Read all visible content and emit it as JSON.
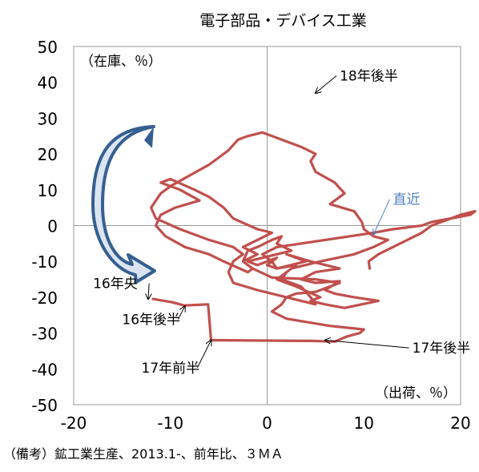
{
  "chart_data": {
    "type": "line",
    "title": "電子部品・デバイス工業",
    "ylabel": "（在庫、％）",
    "xlabel": "（出荷、％）",
    "xlim": [
      -20,
      20
    ],
    "ylim": [
      -50,
      50
    ],
    "xticks": [
      -20,
      -10,
      0,
      10,
      20
    ],
    "yticks": [
      50,
      40,
      30,
      20,
      10,
      0,
      -10,
      -20,
      -30,
      -40,
      -50
    ],
    "grid": false,
    "colors": {
      "line": "#c0504d",
      "annotation_latest": "#4f81bd",
      "arrow_fill": "#dbe5f1",
      "arrow_stroke": "#365f91"
    },
    "series": [
      {
        "x": [
          -11.8,
          -9.8,
          -8.6,
          -6.1,
          -5.8,
          4.5,
          7.0,
          8.2,
          9.6,
          10.0,
          6.5,
          2.0,
          0.5,
          1.5,
          2.0,
          3.0,
          5.0,
          7.5,
          5.0,
          0.5,
          -1.5,
          -2.5,
          -1.0,
          -2.5,
          -1.0,
          0.5,
          -1.0,
          -3.5,
          -4.5,
          -6.0,
          -7.5,
          -10.0,
          -11.0,
          -9.0,
          -7.0,
          -9.5,
          -11.0,
          -11.5,
          -10.5,
          -8.5,
          -6.0,
          -4.5,
          -2.0,
          -1.5,
          -2.5,
          -2.0,
          -1.0,
          0.5,
          1.5,
          1.0,
          2.5,
          1.0,
          -2.0,
          -1.0,
          1.0,
          0.0,
          1.0,
          4.0,
          2.0,
          4.5,
          7.5,
          5.0,
          3.5,
          5.0,
          7.5,
          6.0,
          7.0,
          9.0,
          11.5,
          8.0,
          6.0,
          4.5,
          5.5,
          3.0,
          1.0,
          2.5,
          5.5,
          9.0,
          11.0,
          12.5,
          11.0,
          10.0,
          9.8,
          9.0,
          6.5,
          8.0,
          7.0,
          5.0,
          4.5,
          5.0,
          3.5,
          1.5,
          -0.5,
          -2.0,
          -3.0,
          -4.0,
          -5.0,
          -6.0,
          -8.0,
          -10.0,
          -11.0,
          -12.0,
          -11.5,
          -9.0,
          -6.0,
          -3.5,
          -2.5,
          -3.5,
          -4.0,
          -3.5,
          -1.0,
          0.5,
          3.5,
          5.0,
          4.5,
          3.5,
          1.5,
          2.0,
          3.0,
          1.0,
          0.5,
          -0.5,
          1.0,
          3.5,
          6.0,
          8.5,
          11.0,
          13.0,
          16.0,
          17.0,
          19.0,
          21.0,
          21.5,
          20.0,
          19.0,
          18.0,
          17.0,
          16.0,
          14.5,
          13.0,
          11.5,
          10.5,
          10.6
        ],
        "y": [
          -20.5,
          -21.4,
          -22.3,
          -22.0,
          -32.0,
          -32.2,
          -32.4,
          -31.0,
          -30.0,
          -29.0,
          -28.0,
          -26.0,
          -24.0,
          -22.0,
          -20.0,
          -19.0,
          -18.5,
          -16.0,
          -15.0,
          -14.5,
          -12.0,
          -10.0,
          -8.0,
          -6.0,
          -4.0,
          -2.0,
          -1.0,
          2.0,
          5.0,
          8.0,
          10.0,
          13.0,
          12.0,
          10.0,
          7.0,
          5.0,
          3.0,
          0.0,
          -3.0,
          -6.0,
          -8.0,
          -10.0,
          -13.0,
          -12.0,
          -10.0,
          -7.0,
          -6.0,
          -4.0,
          -3.0,
          -5.0,
          -7.0,
          -8.0,
          -10.0,
          -11.0,
          -9.0,
          -11.0,
          -12.0,
          -10.0,
          -8.0,
          -10.0,
          -12.0,
          -13.0,
          -15.0,
          -16.0,
          -15.5,
          -18.0,
          -19.0,
          -20.0,
          -21.0,
          -23.0,
          -22.0,
          -21.0,
          -20.0,
          -17.0,
          -15.0,
          -12.0,
          -10.0,
          -8.0,
          -6.0,
          -4.0,
          -3.0,
          -1.0,
          1.0,
          4.0,
          6.0,
          9.0,
          12.0,
          15.0,
          18.0,
          20.0,
          22.0,
          24.0,
          26.0,
          25.0,
          24.0,
          21.0,
          19.0,
          17.0,
          14.0,
          11.0,
          9.0,
          5.0,
          2.0,
          -1.0,
          -4.0,
          -6.0,
          -8.0,
          -10.0,
          -13.0,
          -16.0,
          -18.0,
          -19.0,
          -21.0,
          -22.0,
          -20.0,
          -17.0,
          -15.0,
          -13.0,
          -11.0,
          -12.0,
          -10.0,
          -8.0,
          -6.0,
          -5.0,
          -4.0,
          -3.0,
          -2.0,
          -1.0,
          0.0,
          1.0,
          2.0,
          3.0,
          4.0,
          3.0,
          2.0,
          1.0,
          0.0,
          -2.0,
          -4.0,
          -6.0,
          -8.0,
          -10.0,
          -12.0
        ]
      }
    ],
    "annotations": [
      {
        "text": "18年後半",
        "x": 7.5,
        "y": 40.5,
        "target_x": 5.0,
        "target_y": 37.0
      },
      {
        "text": "直近",
        "x": 13.0,
        "y": 6.0,
        "target_x": 11.0,
        "target_y": -2.5
      },
      {
        "text": "16年央",
        "x": -18.0,
        "y": -17.5,
        "target_x": -12.3,
        "target_y": -20.5
      },
      {
        "text": "16年後半",
        "x": -15.0,
        "y": -27.5,
        "target_x": -8.5,
        "target_y": -22.5
      },
      {
        "text": "17年前半",
        "x": -13.0,
        "y": -41.0,
        "target_x": -5.8,
        "target_y": -32.0
      },
      {
        "text": "17年後半",
        "x": 15.0,
        "y": -35.5,
        "target_x": 6.0,
        "target_y": -32.0
      }
    ]
  },
  "note": "（備考）鉱工業生産、2013.1-、前年比、３ＭＡ"
}
